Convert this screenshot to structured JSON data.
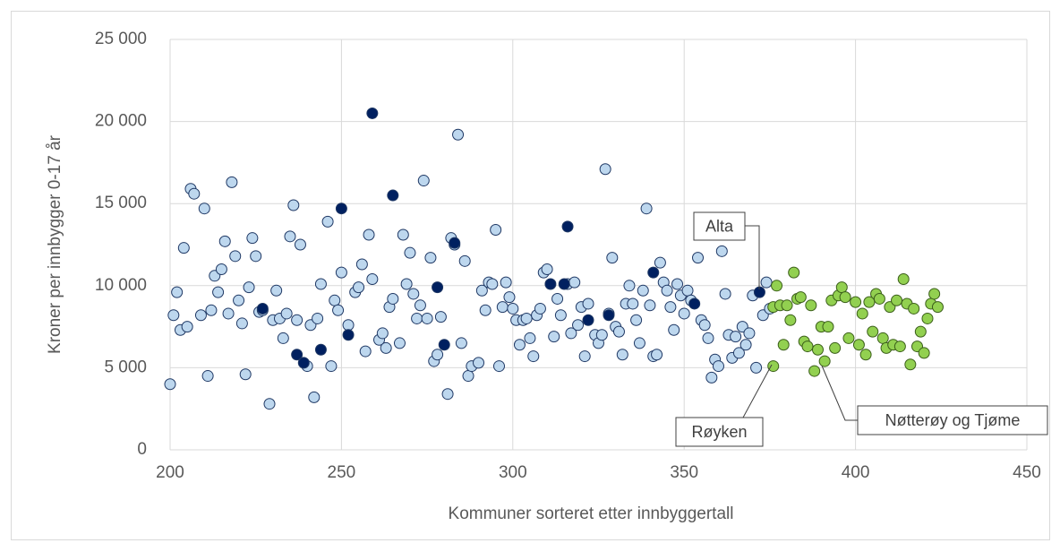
{
  "chart_data": {
    "type": "scatter",
    "xlabel": "Kommuner sorteret etter innbyggertall",
    "ylabel": "Kroner per innbygger 0-17 år",
    "xlim": [
      200,
      450
    ],
    "xticks": [
      200,
      250,
      300,
      350,
      400,
      450
    ],
    "ylim": [
      0,
      25000
    ],
    "yticks": [
      {
        "value": 0,
        "label": "0"
      },
      {
        "value": 5000,
        "label": "5 000"
      },
      {
        "value": 10000,
        "label": "10 000"
      },
      {
        "value": 15000,
        "label": "15 000"
      },
      {
        "value": 20000,
        "label": "20 000"
      },
      {
        "value": 25000,
        "label": "25 000"
      }
    ],
    "grid": true,
    "series": [
      {
        "color": "#bdd7ee",
        "x": [
          200,
          201,
          202,
          203,
          204,
          205,
          206,
          207,
          209,
          210,
          211,
          212,
          213,
          214,
          215,
          216,
          217,
          218,
          219,
          220,
          221,
          222,
          223,
          224,
          225,
          226,
          227,
          229,
          230,
          231,
          232,
          233,
          234,
          235,
          236,
          237,
          238,
          240,
          241,
          242,
          243,
          244,
          246,
          247,
          248,
          249,
          250,
          252,
          254,
          255,
          256,
          257,
          258,
          259,
          261,
          262,
          263,
          264,
          265,
          267,
          268,
          269,
          270,
          271,
          272,
          273,
          274,
          275,
          276,
          277,
          278,
          279,
          281,
          282,
          283,
          284,
          285,
          286,
          287,
          288,
          290,
          291,
          292,
          293,
          294,
          295,
          296,
          297,
          298,
          299,
          300,
          301,
          302,
          303,
          304,
          305,
          306,
          307,
          308,
          309,
          310,
          312,
          313,
          314,
          316,
          317,
          318,
          319,
          320,
          321,
          322,
          324,
          325,
          326,
          327,
          328,
          329,
          330,
          331,
          332,
          333,
          334,
          335,
          336,
          337,
          338,
          339,
          340,
          341,
          342,
          343,
          344,
          345,
          346,
          347,
          348,
          349,
          350,
          351,
          352,
          354,
          355,
          356,
          357,
          358,
          359,
          360,
          361,
          362,
          363,
          364,
          365,
          366,
          367,
          368,
          369,
          370,
          371,
          373,
          374,
          375
        ],
        "values": [
          4000,
          8200,
          9600,
          7300,
          12300,
          7500,
          15900,
          15600,
          8200,
          14700,
          4500,
          8500,
          10600,
          9600,
          11000,
          12700,
          8300,
          16300,
          11800,
          9100,
          7700,
          4600,
          9900,
          12900,
          11800,
          8400,
          8500,
          2800,
          7900,
          9700,
          8000,
          6800,
          8300,
          13000,
          14900,
          7900,
          12500,
          5100,
          7600,
          3200,
          8000,
          10100,
          13900,
          5100,
          9100,
          8500,
          10800,
          7600,
          9600,
          9900,
          11300,
          6000,
          13100,
          10400,
          6700,
          7100,
          6200,
          8700,
          9200,
          6500,
          13100,
          10100,
          12000,
          9500,
          8000,
          8800,
          16400,
          8000,
          11700,
          5400,
          5800,
          8100,
          3400,
          12900,
          12500,
          19200,
          6500,
          11500,
          4500,
          5100,
          5300,
          9700,
          8500,
          10200,
          10100,
          13400,
          5100,
          8700,
          10200,
          9300,
          8600,
          7900,
          6400,
          7900,
          8000,
          6800,
          5700,
          8200,
          8600,
          10800,
          11000,
          6900,
          9200,
          8200,
          10100,
          7100,
          10200,
          7600,
          8700,
          5700,
          8900,
          7000,
          6500,
          7000,
          17100,
          8300,
          11700,
          7500,
          7200,
          5800,
          8900,
          10000,
          8900,
          7900,
          6500,
          9700,
          14700,
          8800,
          5700,
          5800,
          11400,
          10200,
          9700,
          8700,
          7300,
          10100,
          9400,
          8300,
          9700,
          9100,
          11700,
          7900,
          7600,
          6800,
          4400,
          5500,
          5100,
          12100,
          9500,
          7000,
          5600,
          6900,
          5900,
          7500,
          6400,
          7100,
          9400,
          5000,
          8200,
          10200,
          8600
        ]
      },
      {
        "color": "#002060",
        "x": [
          227,
          237,
          239,
          244,
          250,
          252,
          259,
          265,
          278,
          280,
          283,
          311,
          315,
          316,
          322,
          328,
          341,
          353,
          372
        ],
        "values": [
          8600,
          5800,
          5300,
          6100,
          14700,
          7000,
          20500,
          15500,
          9900,
          6400,
          12600,
          10100,
          10100,
          13600,
          7900,
          8200,
          10800,
          8900,
          9600
        ]
      },
      {
        "color": "#92d050",
        "x": [
          376,
          376,
          377,
          378,
          379,
          380,
          381,
          382,
          383,
          384,
          385,
          386,
          387,
          388,
          389,
          390,
          391,
          392,
          393,
          394,
          395,
          396,
          397,
          398,
          400,
          401,
          402,
          403,
          404,
          405,
          406,
          407,
          408,
          409,
          410,
          411,
          412,
          413,
          414,
          415,
          416,
          417,
          418,
          419,
          420,
          421,
          422,
          423,
          424
        ],
        "values": [
          8700,
          5100,
          10000,
          8800,
          6400,
          8800,
          7900,
          10800,
          9200,
          9300,
          6600,
          6300,
          8800,
          4800,
          6100,
          7500,
          5400,
          7500,
          9100,
          6200,
          9400,
          9900,
          9300,
          6800,
          9000,
          6400,
          8300,
          5800,
          9000,
          7200,
          9500,
          9200,
          6800,
          6200,
          8700,
          6400,
          9100,
          6300,
          10400,
          8900,
          5200,
          8600,
          6300,
          7200,
          5900,
          8000,
          8900,
          9500,
          8700
        ]
      }
    ],
    "annotations": [
      "Alta",
      "Røyken",
      "Nøtterøy og Tjøme"
    ]
  }
}
